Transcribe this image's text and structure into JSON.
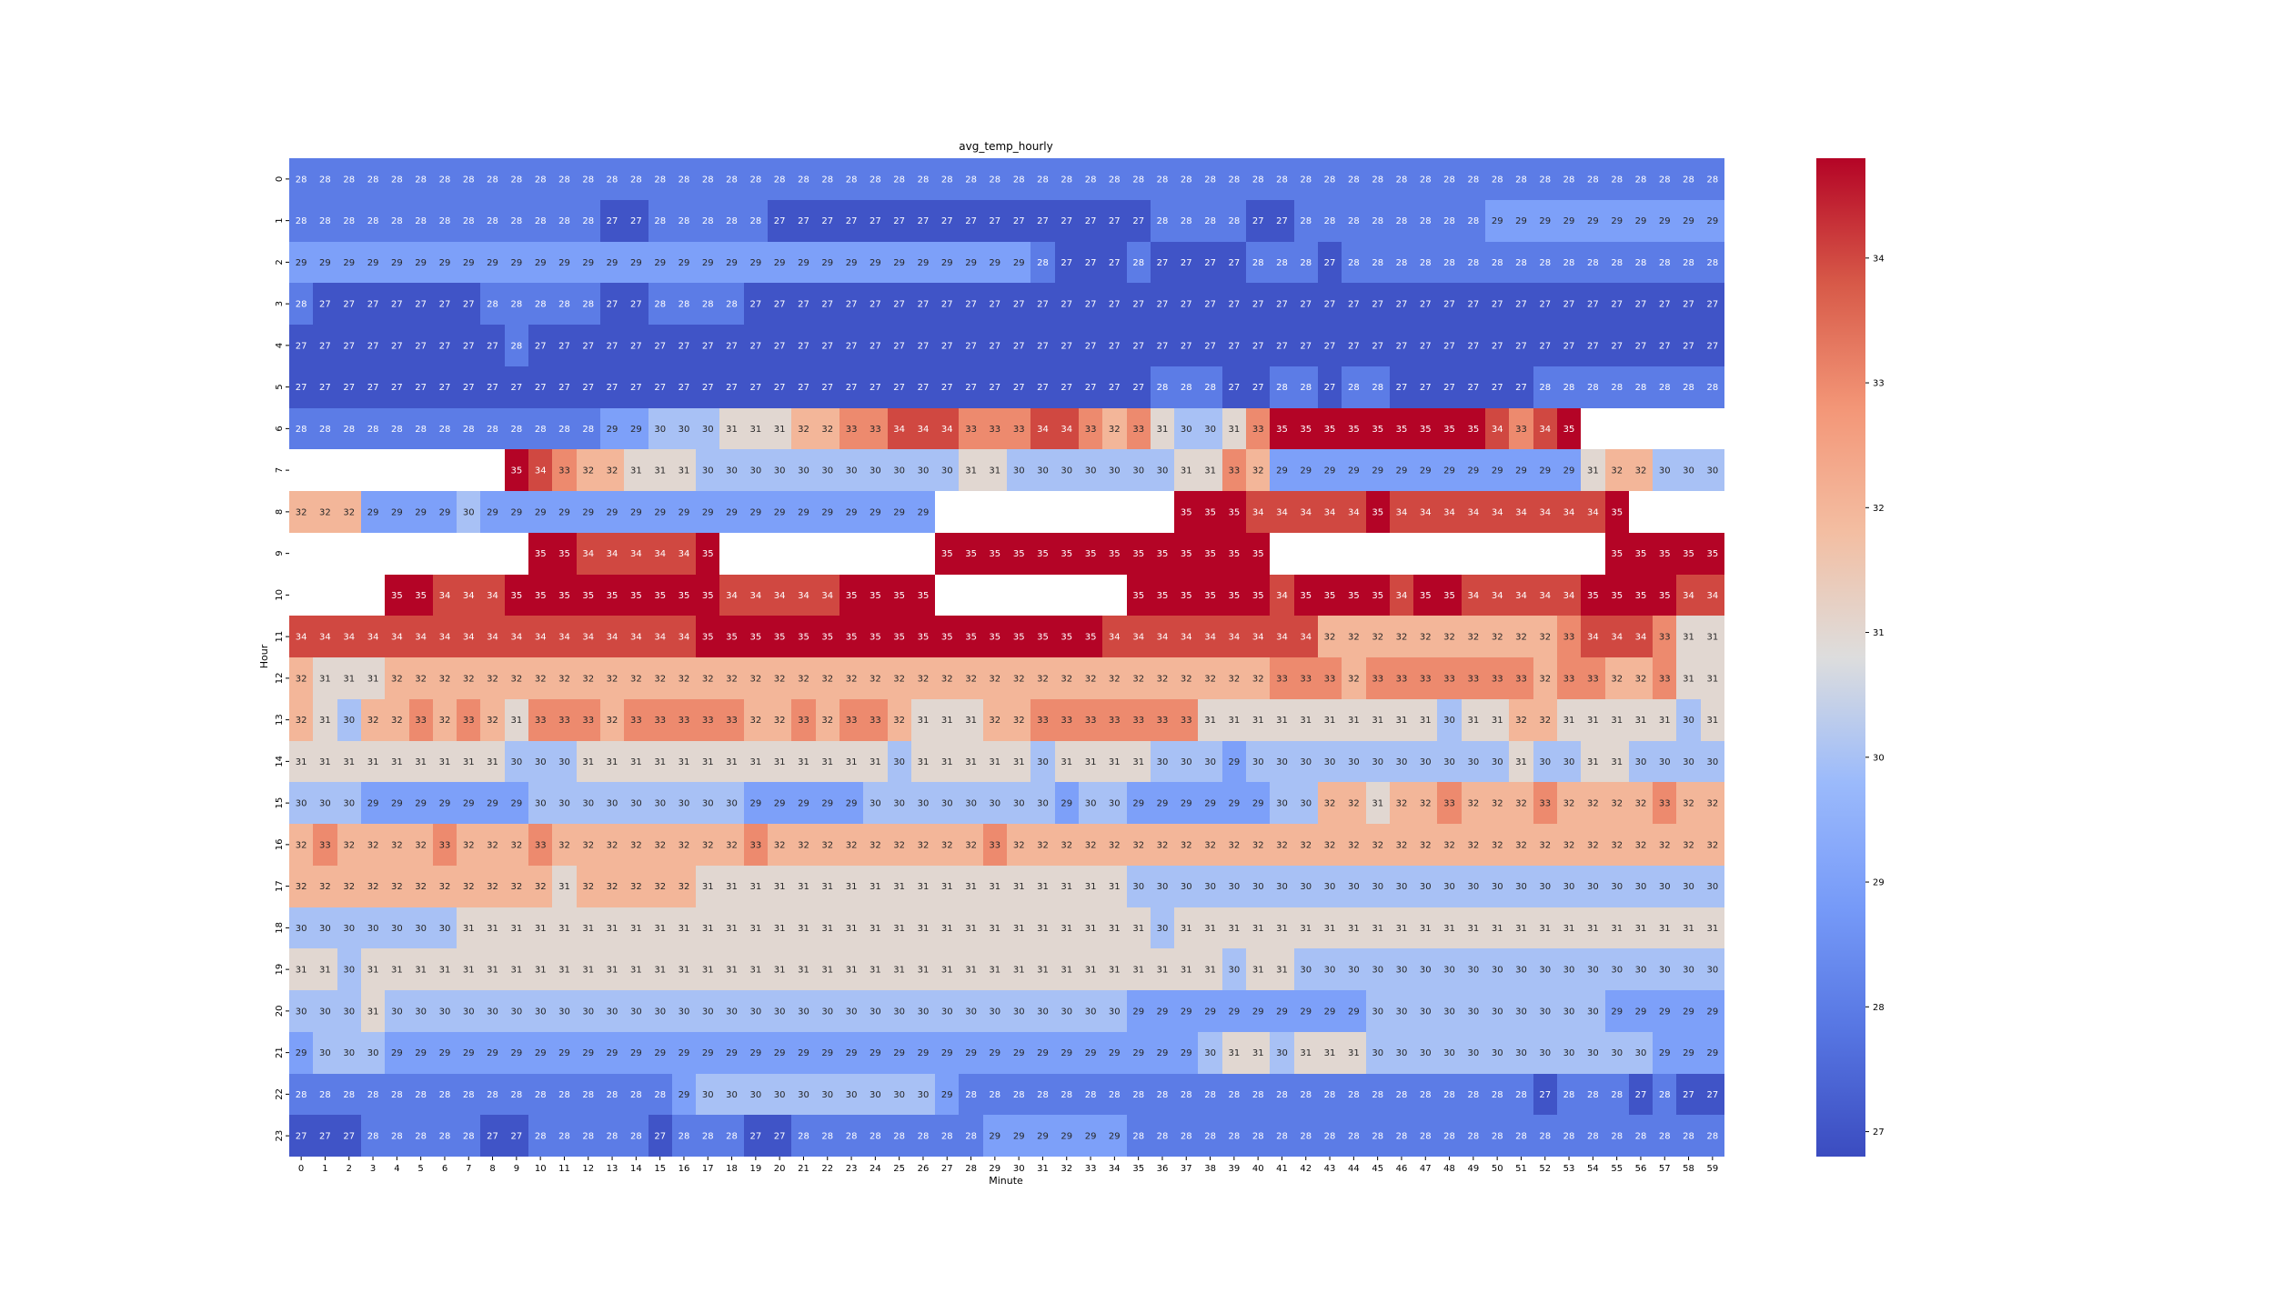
{
  "chart_data": {
    "type": "heatmap",
    "title": "avg_temp_hourly",
    "xlabel": "Minute",
    "ylabel": "Hour",
    "x": [
      0,
      1,
      2,
      3,
      4,
      5,
      6,
      7,
      8,
      9,
      10,
      11,
      12,
      13,
      14,
      15,
      16,
      17,
      18,
      19,
      20,
      21,
      22,
      23,
      24,
      25,
      26,
      27,
      28,
      29,
      30,
      31,
      32,
      33,
      34,
      35,
      36,
      37,
      38,
      39,
      40,
      41,
      42,
      43,
      44,
      45,
      46,
      47,
      48,
      49,
      50,
      51,
      52,
      53,
      54,
      55,
      56,
      57,
      58,
      59
    ],
    "y": [
      0,
      1,
      2,
      3,
      4,
      5,
      6,
      7,
      8,
      9,
      10,
      11,
      12,
      13,
      14,
      15,
      16,
      17,
      18,
      19,
      20,
      21,
      22,
      23
    ],
    "values": [
      [
        28,
        28,
        28,
        28,
        28,
        28,
        28,
        28,
        28,
        28,
        28,
        28,
        28,
        28,
        28,
        28,
        28,
        28,
        28,
        28,
        28,
        28,
        28,
        28,
        28,
        28,
        28,
        28,
        28,
        28,
        28,
        28,
        28,
        28,
        28,
        28,
        28,
        28,
        28,
        28,
        28,
        28,
        28,
        28,
        28,
        28,
        28,
        28,
        28,
        28,
        28,
        28,
        28,
        28,
        28,
        28,
        28,
        28,
        28,
        28
      ],
      [
        28,
        28,
        28,
        28,
        28,
        28,
        28,
        28,
        28,
        28,
        28,
        28,
        28,
        27,
        27,
        28,
        28,
        28,
        28,
        28,
        27,
        27,
        27,
        27,
        27,
        27,
        27,
        27,
        27,
        27,
        27,
        27,
        27,
        27,
        27,
        27,
        28,
        28,
        28,
        28,
        27,
        27,
        28,
        28,
        28,
        28,
        28,
        28,
        28,
        28,
        29,
        29,
        29,
        29,
        29,
        29,
        29,
        29,
        29,
        29
      ],
      [
        29,
        29,
        29,
        29,
        29,
        29,
        29,
        29,
        29,
        29,
        29,
        29,
        29,
        29,
        29,
        29,
        29,
        29,
        29,
        29,
        29,
        29,
        29,
        29,
        29,
        29,
        29,
        29,
        29,
        29,
        29,
        28,
        27,
        27,
        27,
        28,
        27,
        27,
        27,
        27,
        28,
        28,
        28,
        27,
        28,
        28,
        28,
        28,
        28,
        28,
        28,
        28,
        28,
        28,
        28,
        28,
        28,
        28,
        28,
        28
      ],
      [
        28,
        27,
        27,
        27,
        27,
        27,
        27,
        27,
        28,
        28,
        28,
        28,
        28,
        27,
        27,
        28,
        28,
        28,
        28,
        27,
        27,
        27,
        27,
        27,
        27,
        27,
        27,
        27,
        27,
        27,
        27,
        27,
        27,
        27,
        27,
        27,
        27,
        27,
        27,
        27,
        27,
        27,
        27,
        27,
        27,
        27,
        27,
        27,
        27,
        27,
        27,
        27,
        27,
        27,
        27,
        27,
        27,
        27,
        27,
        27
      ],
      [
        27,
        27,
        27,
        27,
        27,
        27,
        27,
        27,
        27,
        28,
        27,
        27,
        27,
        27,
        27,
        27,
        27,
        27,
        27,
        27,
        27,
        27,
        27,
        27,
        27,
        27,
        27,
        27,
        27,
        27,
        27,
        27,
        27,
        27,
        27,
        27,
        27,
        27,
        27,
        27,
        27,
        27,
        27,
        27,
        27,
        27,
        27,
        27,
        27,
        27,
        27,
        27,
        27,
        27,
        27,
        27,
        27,
        27,
        27,
        27
      ],
      [
        27,
        27,
        27,
        27,
        27,
        27,
        27,
        27,
        27,
        27,
        27,
        27,
        27,
        27,
        27,
        27,
        27,
        27,
        27,
        27,
        27,
        27,
        27,
        27,
        27,
        27,
        27,
        27,
        27,
        27,
        27,
        27,
        27,
        27,
        27,
        27,
        28,
        28,
        28,
        27,
        27,
        28,
        28,
        27,
        28,
        28,
        27,
        27,
        27,
        27,
        27,
        27,
        28,
        28,
        28,
        28,
        28,
        28,
        28,
        28
      ],
      [
        28,
        28,
        28,
        28,
        28,
        28,
        28,
        28,
        28,
        28,
        28,
        28,
        28,
        29,
        29,
        30,
        30,
        30,
        31,
        31,
        31,
        32,
        32,
        33,
        33,
        34,
        34,
        34,
        33,
        33,
        33,
        34,
        34,
        33,
        32,
        33,
        31,
        30,
        30,
        31,
        33,
        35,
        35,
        35,
        35,
        35,
        35,
        35,
        35,
        35,
        34,
        33,
        34,
        35,
        null,
        null,
        null,
        null,
        null,
        null
      ],
      [
        null,
        null,
        null,
        null,
        null,
        null,
        null,
        null,
        null,
        35,
        34,
        33,
        32,
        32,
        31,
        31,
        31,
        30,
        30,
        30,
        30,
        30,
        30,
        30,
        30,
        30,
        30,
        30,
        31,
        31,
        30,
        30,
        30,
        30,
        30,
        30,
        30,
        31,
        31,
        33,
        32,
        29,
        29,
        29,
        29,
        29,
        29,
        29,
        29,
        29,
        29,
        29,
        29,
        29,
        31,
        32,
        32,
        30,
        30,
        30
      ],
      [
        32,
        32,
        32,
        29,
        29,
        29,
        29,
        30,
        29,
        29,
        29,
        29,
        29,
        29,
        29,
        29,
        29,
        29,
        29,
        29,
        29,
        29,
        29,
        29,
        29,
        29,
        29,
        null,
        null,
        null,
        null,
        null,
        null,
        null,
        null,
        null,
        null,
        35,
        35,
        35,
        34,
        34,
        34,
        34,
        34,
        35,
        34,
        34,
        34,
        34,
        34,
        34,
        34,
        34,
        34,
        35,
        null,
        null,
        null,
        null
      ],
      [
        null,
        null,
        null,
        null,
        null,
        null,
        null,
        null,
        null,
        null,
        35,
        35,
        34,
        34,
        34,
        34,
        34,
        35,
        null,
        null,
        null,
        null,
        null,
        null,
        null,
        null,
        null,
        35,
        35,
        35,
        35,
        35,
        35,
        35,
        35,
        35,
        35,
        35,
        35,
        35,
        35,
        null,
        null,
        null,
        null,
        null,
        null,
        null,
        null,
        null,
        null,
        null,
        null,
        null,
        null,
        35,
        35,
        35,
        35,
        35
      ],
      [
        null,
        null,
        null,
        null,
        35,
        35,
        34,
        34,
        34,
        35,
        35,
        35,
        35,
        35,
        35,
        35,
        35,
        35,
        34,
        34,
        34,
        34,
        34,
        35,
        35,
        35,
        35,
        null,
        null,
        null,
        null,
        null,
        null,
        null,
        null,
        35,
        35,
        35,
        35,
        35,
        35,
        34,
        35,
        35,
        35,
        35,
        34,
        35,
        35,
        34,
        34,
        34,
        34,
        34,
        35,
        35,
        35,
        35,
        34,
        34
      ],
      [
        34,
        34,
        34,
        34,
        34,
        34,
        34,
        34,
        34,
        34,
        34,
        34,
        34,
        34,
        34,
        34,
        34,
        35,
        35,
        35,
        35,
        35,
        35,
        35,
        35,
        35,
        35,
        35,
        35,
        35,
        35,
        35,
        35,
        35,
        34,
        34,
        34,
        34,
        34,
        34,
        34,
        34,
        34,
        32,
        32,
        32,
        32,
        32,
        32,
        32,
        32,
        32,
        32,
        33,
        34,
        34,
        34,
        33,
        31,
        31
      ],
      [
        32,
        31,
        31,
        31,
        32,
        32,
        32,
        32,
        32,
        32,
        32,
        32,
        32,
        32,
        32,
        32,
        32,
        32,
        32,
        32,
        32,
        32,
        32,
        32,
        32,
        32,
        32,
        32,
        32,
        32,
        32,
        32,
        32,
        32,
        32,
        32,
        32,
        32,
        32,
        32,
        32,
        33,
        33,
        33,
        32,
        33,
        33,
        33,
        33,
        33,
        33,
        33,
        32,
        33,
        33,
        32,
        32,
        33,
        31,
        31
      ],
      [
        32,
        31,
        30,
        32,
        32,
        33,
        32,
        33,
        32,
        31,
        33,
        33,
        33,
        32,
        33,
        33,
        33,
        33,
        33,
        32,
        32,
        33,
        32,
        33,
        33,
        32,
        31,
        31,
        31,
        32,
        32,
        33,
        33,
        33,
        33,
        33,
        33,
        33,
        31,
        31,
        31,
        31,
        31,
        31,
        31,
        31,
        31,
        31,
        30,
        31,
        31,
        32,
        32,
        31,
        31,
        31,
        31,
        31,
        30,
        31
      ],
      [
        31,
        31,
        31,
        31,
        31,
        31,
        31,
        31,
        31,
        30,
        30,
        30,
        31,
        31,
        31,
        31,
        31,
        31,
        31,
        31,
        31,
        31,
        31,
        31,
        31,
        30,
        31,
        31,
        31,
        31,
        31,
        30,
        31,
        31,
        31,
        31,
        30,
        30,
        30,
        29,
        30,
        30,
        30,
        30,
        30,
        30,
        30,
        30,
        30,
        30,
        30,
        31,
        30,
        30,
        31,
        31,
        30,
        30,
        30,
        30
      ],
      [
        30,
        30,
        30,
        29,
        29,
        29,
        29,
        29,
        29,
        29,
        30,
        30,
        30,
        30,
        30,
        30,
        30,
        30,
        30,
        29,
        29,
        29,
        29,
        29,
        30,
        30,
        30,
        30,
        30,
        30,
        30,
        30,
        29,
        30,
        30,
        29,
        29,
        29,
        29,
        29,
        29,
        30,
        30,
        32,
        32,
        31,
        32,
        32,
        33,
        32,
        32,
        32,
        33,
        32,
        32,
        32,
        32,
        33,
        32,
        32
      ],
      [
        32,
        33,
        32,
        32,
        32,
        32,
        33,
        32,
        32,
        32,
        33,
        32,
        32,
        32,
        32,
        32,
        32,
        32,
        32,
        33,
        32,
        32,
        32,
        32,
        32,
        32,
        32,
        32,
        32,
        33,
        32,
        32,
        32,
        32,
        32,
        32,
        32,
        32,
        32,
        32,
        32,
        32,
        32,
        32,
        32,
        32,
        32,
        32,
        32,
        32,
        32,
        32,
        32,
        32,
        32,
        32,
        32,
        32,
        32,
        32
      ],
      [
        32,
        32,
        32,
        32,
        32,
        32,
        32,
        32,
        32,
        32,
        32,
        31,
        32,
        32,
        32,
        32,
        32,
        31,
        31,
        31,
        31,
        31,
        31,
        31,
        31,
        31,
        31,
        31,
        31,
        31,
        31,
        31,
        31,
        31,
        31,
        30,
        30,
        30,
        30,
        30,
        30,
        30,
        30,
        30,
        30,
        30,
        30,
        30,
        30,
        30,
        30,
        30,
        30,
        30,
        30,
        30,
        30,
        30,
        30,
        30
      ],
      [
        30,
        30,
        30,
        30,
        30,
        30,
        30,
        31,
        31,
        31,
        31,
        31,
        31,
        31,
        31,
        31,
        31,
        31,
        31,
        31,
        31,
        31,
        31,
        31,
        31,
        31,
        31,
        31,
        31,
        31,
        31,
        31,
        31,
        31,
        31,
        31,
        30,
        31,
        31,
        31,
        31,
        31,
        31,
        31,
        31,
        31,
        31,
        31,
        31,
        31,
        31,
        31,
        31,
        31,
        31,
        31,
        31,
        31,
        31,
        31
      ],
      [
        31,
        31,
        30,
        31,
        31,
        31,
        31,
        31,
        31,
        31,
        31,
        31,
        31,
        31,
        31,
        31,
        31,
        31,
        31,
        31,
        31,
        31,
        31,
        31,
        31,
        31,
        31,
        31,
        31,
        31,
        31,
        31,
        31,
        31,
        31,
        31,
        31,
        31,
        31,
        30,
        31,
        31,
        30,
        30,
        30,
        30,
        30,
        30,
        30,
        30,
        30,
        30,
        30,
        30,
        30,
        30,
        30,
        30,
        30,
        30
      ],
      [
        30,
        30,
        30,
        31,
        30,
        30,
        30,
        30,
        30,
        30,
        30,
        30,
        30,
        30,
        30,
        30,
        30,
        30,
        30,
        30,
        30,
        30,
        30,
        30,
        30,
        30,
        30,
        30,
        30,
        30,
        30,
        30,
        30,
        30,
        30,
        29,
        29,
        29,
        29,
        29,
        29,
        29,
        29,
        29,
        29,
        30,
        30,
        30,
        30,
        30,
        30,
        30,
        30,
        30,
        30,
        29,
        29,
        29,
        29,
        29
      ],
      [
        29,
        30,
        30,
        30,
        29,
        29,
        29,
        29,
        29,
        29,
        29,
        29,
        29,
        29,
        29,
        29,
        29,
        29,
        29,
        29,
        29,
        29,
        29,
        29,
        29,
        29,
        29,
        29,
        29,
        29,
        29,
        29,
        29,
        29,
        29,
        29,
        29,
        29,
        30,
        31,
        31,
        30,
        31,
        31,
        31,
        30,
        30,
        30,
        30,
        30,
        30,
        30,
        30,
        30,
        30,
        30,
        30,
        29,
        29,
        29
      ],
      [
        28,
        28,
        28,
        28,
        28,
        28,
        28,
        28,
        28,
        28,
        28,
        28,
        28,
        28,
        28,
        28,
        29,
        30,
        30,
        30,
        30,
        30,
        30,
        30,
        30,
        30,
        30,
        29,
        28,
        28,
        28,
        28,
        28,
        28,
        28,
        28,
        28,
        28,
        28,
        28,
        28,
        28,
        28,
        28,
        28,
        28,
        28,
        28,
        28,
        28,
        28,
        28,
        27,
        28,
        28,
        28,
        27,
        28,
        27,
        27
      ],
      [
        27,
        27,
        27,
        28,
        28,
        28,
        28,
        28,
        27,
        27,
        28,
        28,
        28,
        28,
        28,
        27,
        28,
        28,
        28,
        27,
        27,
        28,
        28,
        28,
        28,
        28,
        28,
        28,
        28,
        29,
        29,
        29,
        29,
        29,
        29,
        28,
        28,
        28,
        28,
        28,
        28,
        28,
        28,
        28,
        28,
        28,
        28,
        28,
        28,
        28,
        28,
        28,
        28,
        28,
        28,
        28,
        28,
        28,
        28,
        28
      ]
    ],
    "colorbar": {
      "ticks": [
        27,
        28,
        29,
        30,
        31,
        32,
        33,
        34
      ],
      "min": 26.8,
      "max": 34.8
    },
    "colormap": "coolwarm",
    "colors": {
      "low": "#3b4cc0",
      "mid": "#dddddd",
      "high": "#b40426"
    }
  }
}
